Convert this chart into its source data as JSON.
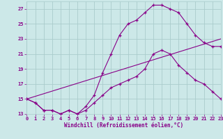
{
  "title": "",
  "xlabel": "Windchill (Refroidissement éolien,°C)",
  "bg_color": "#cce8e8",
  "grid_color": "#aacccc",
  "line_color": "#880088",
  "xlim": [
    0,
    23
  ],
  "ylim": [
    13,
    28
  ],
  "xticks": [
    0,
    1,
    2,
    3,
    4,
    5,
    6,
    7,
    8,
    9,
    10,
    11,
    12,
    13,
    14,
    15,
    16,
    17,
    18,
    19,
    20,
    21,
    22,
    23
  ],
  "yticks": [
    13,
    15,
    17,
    19,
    21,
    23,
    25,
    27
  ],
  "curve1_x": [
    0,
    1,
    2,
    3,
    4,
    5,
    6,
    7,
    8,
    9,
    10,
    11,
    12,
    13,
    14,
    15,
    16,
    17,
    18,
    19,
    20,
    21,
    22,
    23
  ],
  "curve1_y": [
    15,
    14.5,
    13.5,
    13.5,
    13,
    13.5,
    13,
    14,
    15.5,
    18.5,
    21,
    23.5,
    25,
    25.5,
    26.5,
    27.5,
    27.5,
    27,
    26.5,
    25,
    23.5,
    22.5,
    22,
    22
  ],
  "curve2_x": [
    0,
    1,
    2,
    3,
    4,
    5,
    6,
    7,
    8,
    9,
    10,
    11,
    12,
    13,
    14,
    15,
    16,
    17,
    18,
    19,
    20,
    21,
    22,
    23
  ],
  "curve2_y": [
    15,
    14.5,
    13.5,
    13.5,
    13,
    13.5,
    13,
    13.5,
    14.5,
    15.5,
    16.5,
    17,
    17.5,
    18,
    19,
    21,
    21.5,
    21,
    19.5,
    18.5,
    17.5,
    17,
    16,
    15
  ],
  "line3_x": [
    0,
    23
  ],
  "line3_y": [
    15,
    23
  ]
}
